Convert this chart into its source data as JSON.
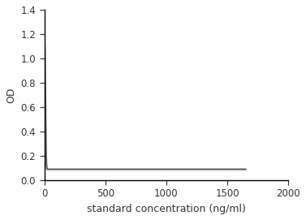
{
  "xlabel": "standard concentration (ng/ml)",
  "ylabel": "OD",
  "xlim": [
    0,
    2000
  ],
  "ylim": [
    0,
    1.4
  ],
  "xticks": [
    0,
    500,
    1000,
    1500,
    2000
  ],
  "yticks": [
    0,
    0.2,
    0.4,
    0.6,
    0.8,
    1.0,
    1.2,
    1.4
  ],
  "line_color": "#666666",
  "line_width": 1.6,
  "curve_params": {
    "A": 1.18,
    "B": 0.09,
    "k": 0.006,
    "n": 0.45
  },
  "background_color": "#ffffff",
  "axes_bg": "#ffffff",
  "label_fontsize": 9,
  "tick_fontsize": 8.5
}
